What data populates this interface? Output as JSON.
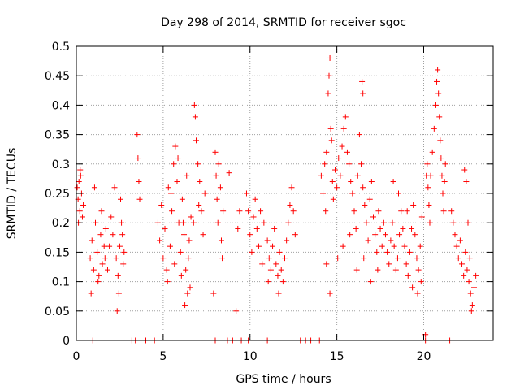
{
  "chart_data": {
    "type": "scatter",
    "title": "Day 298 of 2014, SRMTID for receiver sgoc",
    "xlabel": "GPS time / hours",
    "ylabel": "SRMTID / TECUs",
    "xlim": [
      0,
      24
    ],
    "ylim": [
      0,
      0.5
    ],
    "x_ticks": [
      0,
      5,
      10,
      15,
      20
    ],
    "x_tick_labels": [
      "0",
      "5",
      "10",
      "15",
      "20"
    ],
    "y_ticks": [
      0,
      0.05,
      0.1,
      0.15,
      0.2,
      0.25,
      0.3,
      0.35,
      0.4,
      0.45,
      0.5
    ],
    "y_tick_labels": [
      "0",
      "0.05",
      "0.1",
      "0.15",
      "0.2",
      "0.25",
      "0.3",
      "0.35",
      "0.4",
      "0.45",
      "0.5"
    ],
    "grid": true,
    "marker": "+",
    "series": [
      {
        "name": "SRMTID",
        "color": "#ff0000",
        "points": [
          [
            0.05,
            0.26
          ],
          [
            0.1,
            0.24
          ],
          [
            0.15,
            0.27
          ],
          [
            0.2,
            0.22
          ],
          [
            0.25,
            0.28
          ],
          [
            0.3,
            0.25
          ],
          [
            0.35,
            0.21
          ],
          [
            0.4,
            0.23
          ],
          [
            0.12,
            0.2
          ],
          [
            0.22,
            0.29
          ],
          [
            0.8,
            0.14
          ],
          [
            0.9,
            0.17
          ],
          [
            1.0,
            0.12
          ],
          [
            1.1,
            0.2
          ],
          [
            1.2,
            0.15
          ],
          [
            1.3,
            0.11
          ],
          [
            1.4,
            0.18
          ],
          [
            1.5,
            0.13
          ],
          [
            1.6,
            0.16
          ],
          [
            1.7,
            0.19
          ],
          [
            0.85,
            0.08
          ],
          [
            1.05,
            0.26
          ],
          [
            1.25,
            0.1
          ],
          [
            1.45,
            0.22
          ],
          [
            1.65,
            0.14
          ],
          [
            1.8,
            0.12
          ],
          [
            1.9,
            0.16
          ],
          [
            2.0,
            0.21
          ],
          [
            2.1,
            0.18
          ],
          [
            2.2,
            0.26
          ],
          [
            2.3,
            0.14
          ],
          [
            2.4,
            0.11
          ],
          [
            2.5,
            0.16
          ],
          [
            2.6,
            0.2
          ],
          [
            2.7,
            0.13
          ],
          [
            2.35,
            0.05
          ],
          [
            2.45,
            0.08
          ],
          [
            2.55,
            0.24
          ],
          [
            2.65,
            0.18
          ],
          [
            2.75,
            0.15
          ],
          [
            0.95,
            0.0
          ],
          [
            3.2,
            0.0
          ],
          [
            3.4,
            0.0
          ],
          [
            4.0,
            0.0
          ],
          [
            4.5,
            0.0
          ],
          [
            3.5,
            0.35
          ],
          [
            3.55,
            0.31
          ],
          [
            3.6,
            0.27
          ],
          [
            3.65,
            0.24
          ],
          [
            4.7,
            0.2
          ],
          [
            4.8,
            0.17
          ],
          [
            4.9,
            0.23
          ],
          [
            5.0,
            0.14
          ],
          [
            5.1,
            0.19
          ],
          [
            5.2,
            0.12
          ],
          [
            5.3,
            0.26
          ],
          [
            5.4,
            0.16
          ],
          [
            5.5,
            0.22
          ],
          [
            5.6,
            0.3
          ],
          [
            5.7,
            0.33
          ],
          [
            5.8,
            0.27
          ],
          [
            5.9,
            0.2
          ],
          [
            6.0,
            0.15
          ],
          [
            6.1,
            0.24
          ],
          [
            6.2,
            0.18
          ],
          [
            6.3,
            0.12
          ],
          [
            6.4,
            0.08
          ],
          [
            6.5,
            0.17
          ],
          [
            6.6,
            0.21
          ],
          [
            5.25,
            0.1
          ],
          [
            5.45,
            0.25
          ],
          [
            5.65,
            0.13
          ],
          [
            5.85,
            0.31
          ],
          [
            6.05,
            0.11
          ],
          [
            6.25,
            0.06
          ],
          [
            6.45,
            0.14
          ],
          [
            6.35,
            0.28
          ],
          [
            6.55,
            0.09
          ],
          [
            6.15,
            0.2
          ],
          [
            6.8,
            0.4
          ],
          [
            6.85,
            0.38
          ],
          [
            6.9,
            0.34
          ],
          [
            7.0,
            0.3
          ],
          [
            7.1,
            0.27
          ],
          [
            7.2,
            0.22
          ],
          [
            7.3,
            0.18
          ],
          [
            7.4,
            0.25
          ],
          [
            6.75,
            0.2
          ],
          [
            7.05,
            0.23
          ],
          [
            8.0,
            0.32
          ],
          [
            8.05,
            0.28
          ],
          [
            8.1,
            0.24
          ],
          [
            8.15,
            0.2
          ],
          [
            8.2,
            0.3
          ],
          [
            8.3,
            0.26
          ],
          [
            8.35,
            0.17
          ],
          [
            8.4,
            0.14
          ],
          [
            8.45,
            0.22
          ],
          [
            7.9,
            0.08
          ],
          [
            8.0,
            0.0
          ],
          [
            8.7,
            0.0
          ],
          [
            9.0,
            0.0
          ],
          [
            9.5,
            0.0
          ],
          [
            9.9,
            0.0
          ],
          [
            8.8,
            0.285
          ],
          [
            9.2,
            0.05
          ],
          [
            9.3,
            0.19
          ],
          [
            9.4,
            0.22
          ],
          [
            9.8,
            0.25
          ],
          [
            9.9,
            0.22
          ],
          [
            10.0,
            0.18
          ],
          [
            10.1,
            0.15
          ],
          [
            10.2,
            0.21
          ],
          [
            10.3,
            0.24
          ],
          [
            10.4,
            0.19
          ],
          [
            10.5,
            0.16
          ],
          [
            10.6,
            0.22
          ],
          [
            10.7,
            0.13
          ],
          [
            10.8,
            0.2
          ],
          [
            11.0,
            0.17
          ],
          [
            11.1,
            0.14
          ],
          [
            11.2,
            0.12
          ],
          [
            11.3,
            0.16
          ],
          [
            11.4,
            0.19
          ],
          [
            11.5,
            0.13
          ],
          [
            11.6,
            0.11
          ],
          [
            11.7,
            0.15
          ],
          [
            11.8,
            0.12
          ],
          [
            11.9,
            0.1
          ],
          [
            12.0,
            0.14
          ],
          [
            12.1,
            0.17
          ],
          [
            12.2,
            0.2
          ],
          [
            12.3,
            0.23
          ],
          [
            12.4,
            0.26
          ],
          [
            12.5,
            0.22
          ],
          [
            12.6,
            0.18
          ],
          [
            11.05,
            0.1
          ],
          [
            11.65,
            0.08
          ],
          [
            11.0,
            0.0
          ],
          [
            12.9,
            0.0
          ],
          [
            13.2,
            0.0
          ],
          [
            13.5,
            0.0
          ],
          [
            14.0,
            0.0
          ],
          [
            14.1,
            0.28
          ],
          [
            14.2,
            0.25
          ],
          [
            14.3,
            0.3
          ],
          [
            14.35,
            0.22
          ],
          [
            14.4,
            0.32
          ],
          [
            14.5,
            0.42
          ],
          [
            14.55,
            0.45
          ],
          [
            14.6,
            0.48
          ],
          [
            14.65,
            0.36
          ],
          [
            14.7,
            0.34
          ],
          [
            14.75,
            0.27
          ],
          [
            14.8,
            0.24
          ],
          [
            14.9,
            0.29
          ],
          [
            15.0,
            0.26
          ],
          [
            15.1,
            0.31
          ],
          [
            15.2,
            0.28
          ],
          [
            15.3,
            0.33
          ],
          [
            15.4,
            0.36
          ],
          [
            15.5,
            0.38
          ],
          [
            15.6,
            0.32
          ],
          [
            15.7,
            0.3
          ],
          [
            15.8,
            0.27
          ],
          [
            15.9,
            0.25
          ],
          [
            16.0,
            0.22
          ],
          [
            16.1,
            0.19
          ],
          [
            16.2,
            0.28
          ],
          [
            16.3,
            0.35
          ],
          [
            16.4,
            0.3
          ],
          [
            16.5,
            0.26
          ],
          [
            16.6,
            0.23
          ],
          [
            16.7,
            0.2
          ],
          [
            16.8,
            0.17
          ],
          [
            16.9,
            0.24
          ],
          [
            17.0,
            0.27
          ],
          [
            17.1,
            0.21
          ],
          [
            17.2,
            0.18
          ],
          [
            17.3,
            0.15
          ],
          [
            17.4,
            0.22
          ],
          [
            17.5,
            0.19
          ],
          [
            17.6,
            0.16
          ],
          [
            14.4,
            0.13
          ],
          [
            14.6,
            0.08
          ],
          [
            15.05,
            0.14
          ],
          [
            15.35,
            0.16
          ],
          [
            15.75,
            0.18
          ],
          [
            16.15,
            0.12
          ],
          [
            16.55,
            0.14
          ],
          [
            16.95,
            0.1
          ],
          [
            17.35,
            0.12
          ],
          [
            16.5,
            0.42
          ],
          [
            16.45,
            0.44
          ],
          [
            17.7,
            0.2
          ],
          [
            17.8,
            0.18
          ],
          [
            17.9,
            0.15
          ],
          [
            18.0,
            0.13
          ],
          [
            18.1,
            0.17
          ],
          [
            18.2,
            0.2
          ],
          [
            18.3,
            0.16
          ],
          [
            18.4,
            0.12
          ],
          [
            18.5,
            0.14
          ],
          [
            18.6,
            0.18
          ],
          [
            18.7,
            0.22
          ],
          [
            18.8,
            0.19
          ],
          [
            18.9,
            0.16
          ],
          [
            19.0,
            0.13
          ],
          [
            19.1,
            0.11
          ],
          [
            19.2,
            0.15
          ],
          [
            19.3,
            0.19
          ],
          [
            19.4,
            0.23
          ],
          [
            19.5,
            0.18
          ],
          [
            19.6,
            0.14
          ],
          [
            19.7,
            0.12
          ],
          [
            19.8,
            0.16
          ],
          [
            19.9,
            0.21
          ],
          [
            18.25,
            0.27
          ],
          [
            18.55,
            0.25
          ],
          [
            19.05,
            0.22
          ],
          [
            19.35,
            0.09
          ],
          [
            19.65,
            0.08
          ],
          [
            19.85,
            0.1
          ],
          [
            20.15,
            0.28
          ],
          [
            20.2,
            0.3
          ],
          [
            20.25,
            0.26
          ],
          [
            20.3,
            0.23
          ],
          [
            20.4,
            0.28
          ],
          [
            20.5,
            0.32
          ],
          [
            20.6,
            0.36
          ],
          [
            20.7,
            0.4
          ],
          [
            20.75,
            0.44
          ],
          [
            20.8,
            0.46
          ],
          [
            20.85,
            0.42
          ],
          [
            20.9,
            0.38
          ],
          [
            20.95,
            0.34
          ],
          [
            21.0,
            0.31
          ],
          [
            21.05,
            0.28
          ],
          [
            21.1,
            0.25
          ],
          [
            21.15,
            0.22
          ],
          [
            21.2,
            0.27
          ],
          [
            21.25,
            0.3
          ],
          [
            20.35,
            0.2
          ],
          [
            20.1,
            0.01
          ],
          [
            20.1,
            0.0
          ],
          [
            21.5,
            0.0
          ],
          [
            21.6,
            0.22
          ],
          [
            21.7,
            0.2
          ],
          [
            21.8,
            0.18
          ],
          [
            21.9,
            0.16
          ],
          [
            22.0,
            0.14
          ],
          [
            22.1,
            0.17
          ],
          [
            22.2,
            0.13
          ],
          [
            22.3,
            0.11
          ],
          [
            22.4,
            0.15
          ],
          [
            22.5,
            0.12
          ],
          [
            22.6,
            0.1
          ],
          [
            22.7,
            0.08
          ],
          [
            22.8,
            0.06
          ],
          [
            22.9,
            0.09
          ],
          [
            23.0,
            0.11
          ],
          [
            22.35,
            0.29
          ],
          [
            22.45,
            0.27
          ],
          [
            22.55,
            0.2
          ],
          [
            22.65,
            0.14
          ],
          [
            22.75,
            0.05
          ]
        ]
      }
    ]
  }
}
